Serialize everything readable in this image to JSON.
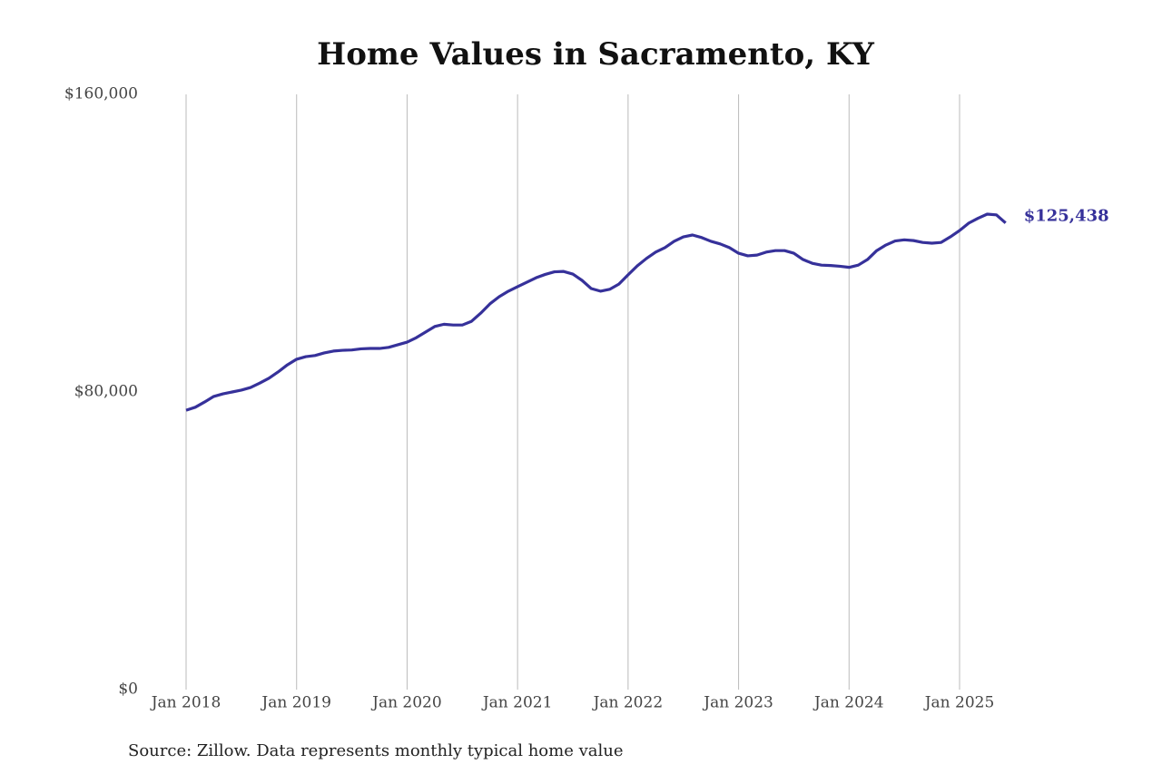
{
  "chart_data": {
    "type": "line",
    "title": "Home Values in Sacramento, KY",
    "source": "Source: Zillow. Data represents monthly typical home value",
    "color": "#36319a",
    "grid": "x",
    "x": [
      "2018-01",
      "2018-02",
      "2018-03",
      "2018-04",
      "2018-05",
      "2018-06",
      "2018-07",
      "2018-08",
      "2018-09",
      "2018-10",
      "2018-11",
      "2018-12",
      "2019-01",
      "2019-02",
      "2019-03",
      "2019-04",
      "2019-05",
      "2019-06",
      "2019-07",
      "2019-08",
      "2019-09",
      "2019-10",
      "2019-11",
      "2019-12",
      "2020-01",
      "2020-02",
      "2020-03",
      "2020-04",
      "2020-05",
      "2020-06",
      "2020-07",
      "2020-08",
      "2020-09",
      "2020-10",
      "2020-11",
      "2020-12",
      "2021-01",
      "2021-02",
      "2021-03",
      "2021-04",
      "2021-05",
      "2021-06",
      "2021-07",
      "2021-08",
      "2021-09",
      "2021-10",
      "2021-11",
      "2021-12",
      "2022-01",
      "2022-02",
      "2022-03",
      "2022-04",
      "2022-05",
      "2022-06",
      "2022-07",
      "2022-08",
      "2022-09",
      "2022-10",
      "2022-11",
      "2022-12",
      "2023-01",
      "2023-02",
      "2023-03",
      "2023-04",
      "2023-05",
      "2023-06",
      "2023-07",
      "2023-08",
      "2023-09",
      "2023-10",
      "2023-11",
      "2023-12",
      "2024-01",
      "2024-02",
      "2024-03",
      "2024-04",
      "2024-05",
      "2024-06",
      "2024-07",
      "2024-08",
      "2024-09",
      "2024-10",
      "2024-11",
      "2024-12",
      "2025-01",
      "2025-02",
      "2025-03",
      "2025-04",
      "2025-05",
      "2025-06"
    ],
    "values": [
      75100,
      75900,
      77300,
      78800,
      79500,
      80000,
      80500,
      81200,
      82400,
      83700,
      85400,
      87300,
      88800,
      89500,
      89800,
      90500,
      91000,
      91200,
      91300,
      91600,
      91700,
      91700,
      92000,
      92700,
      93400,
      94600,
      96100,
      97600,
      98200,
      98000,
      98000,
      99000,
      101200,
      103700,
      105600,
      107100,
      108300,
      109500,
      110700,
      111600,
      112300,
      112400,
      111700,
      110000,
      107800,
      107100,
      107600,
      109000,
      111500,
      113900,
      115900,
      117600,
      118800,
      120500,
      121700,
      122200,
      121500,
      120500,
      119800,
      118800,
      117300,
      116600,
      116800,
      117600,
      118000,
      118000,
      117300,
      115600,
      114600,
      114100,
      114000,
      113800,
      113500,
      114100,
      115600,
      118000,
      119500,
      120600,
      120900,
      120700,
      120200,
      120000,
      120200,
      121700,
      123400,
      125400,
      126700,
      127800,
      127600,
      125438
    ],
    "value_labels": [
      null,
      null,
      null,
      null,
      null,
      null,
      null,
      null,
      null,
      null,
      null,
      null,
      null,
      null,
      null,
      null,
      null,
      null,
      null,
      null,
      null,
      null,
      null,
      null,
      null,
      null,
      null,
      null,
      null,
      null,
      null,
      null,
      null,
      null,
      null,
      null,
      null,
      null,
      null,
      null,
      null,
      null,
      null,
      null,
      null,
      null,
      null,
      null,
      null,
      null,
      null,
      null,
      null,
      null,
      null,
      null,
      null,
      null,
      null,
      null,
      null,
      null,
      null,
      null,
      null,
      null,
      null,
      null,
      null,
      null,
      null,
      null,
      null,
      null,
      null,
      null,
      null,
      null,
      null,
      null,
      null,
      null,
      null,
      null,
      null,
      null,
      null,
      null,
      null,
      "$125,438"
    ],
    "ylim": [
      0,
      160000
    ],
    "yticks": [
      {
        "value": 0,
        "label": "$0"
      },
      {
        "value": 80000,
        "label": "$80,000"
      },
      {
        "value": 160000,
        "label": "$160,000"
      }
    ],
    "xticks": [
      {
        "value": "2018-01",
        "label": "Jan 2018"
      },
      {
        "value": "2019-01",
        "label": "Jan 2019"
      },
      {
        "value": "2020-01",
        "label": "Jan 2020"
      },
      {
        "value": "2021-01",
        "label": "Jan 2021"
      },
      {
        "value": "2022-01",
        "label": "Jan 2022"
      },
      {
        "value": "2023-01",
        "label": "Jan 2023"
      },
      {
        "value": "2024-01",
        "label": "Jan 2024"
      },
      {
        "value": "2025-01",
        "label": "Jan 2025"
      }
    ]
  }
}
